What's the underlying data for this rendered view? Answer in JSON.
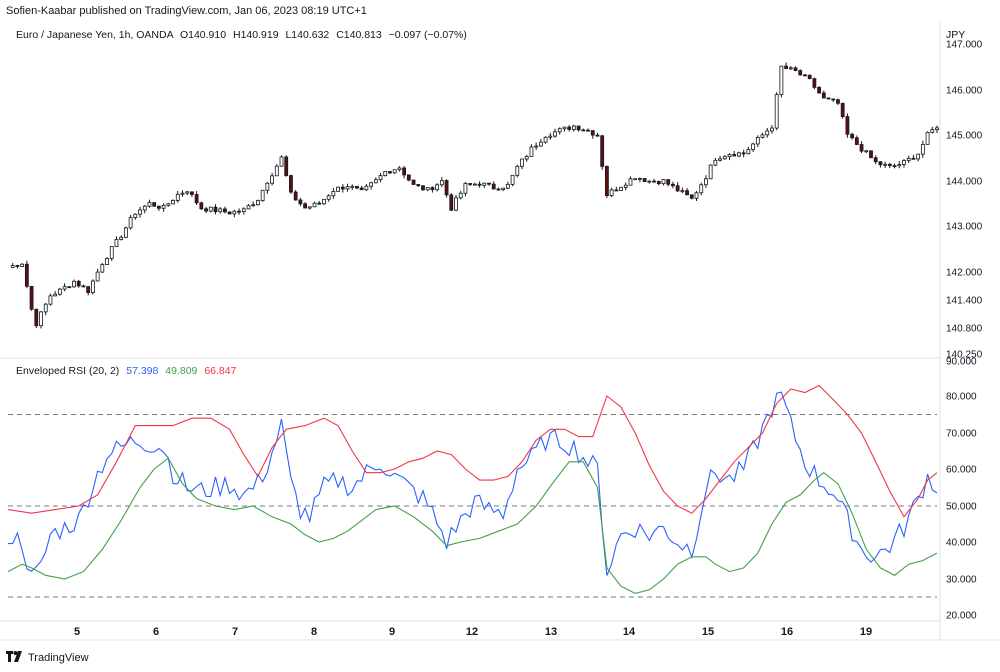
{
  "header": {
    "published": "Sofien-Kaabar published on TradingView.com, Jan 06, 2023 08:19 UTC+1"
  },
  "price_legend": {
    "symbol": "Euro / Japanese Yen, 1h, OANDA",
    "o": "O140.910",
    "h": "H140.919",
    "l": "L140.632",
    "c": "C140.813",
    "chg": "−0.097 (−0.07%)",
    "currency": "JPY"
  },
  "rsi_legend": {
    "name": "Enveloped RSI (20, 2)",
    "v1": "57.398",
    "v2": "49.809",
    "v3": "66.847"
  },
  "footer": {
    "brand": "TradingView",
    "logo_icon": "tradingview-logo-icon"
  },
  "colors": {
    "up": "#26a69a",
    "down": "#ef5350",
    "candle": "#131722",
    "rsi": "#2962ff",
    "lower": "#43a047",
    "upper": "#f23645",
    "grid_dash": "#787b86",
    "border": "#e0e3eb"
  },
  "chart_data": [
    {
      "type": "candlestick",
      "title": "Euro / Japanese Yen, 1h, OANDA",
      "ylabel": "JPY",
      "y_ticks": [
        "147.000",
        "146.000",
        "145.000",
        "144.000",
        "143.000",
        "142.000",
        "141.400",
        "140.800",
        "140.250"
      ],
      "y_tick_values": [
        147.0,
        146.0,
        145.0,
        144.0,
        143.0,
        142.0,
        141.4,
        140.8,
        140.25
      ],
      "ylim": [
        140.25,
        147.2
      ],
      "x_tick_labels": [
        "5",
        "6",
        "7",
        "8",
        "9",
        "12",
        "13",
        "14",
        "15",
        "16",
        "19"
      ],
      "close_path": [
        [
          0,
          142.1
        ],
        [
          3,
          142.2
        ],
        [
          5,
          141.2
        ],
        [
          6,
          140.9
        ],
        [
          9,
          141.5
        ],
        [
          11,
          141.6
        ],
        [
          14,
          141.8
        ],
        [
          17,
          141.6
        ],
        [
          20,
          142.2
        ],
        [
          24,
          142.8
        ],
        [
          27,
          143.3
        ],
        [
          30,
          143.5
        ],
        [
          33,
          143.4
        ],
        [
          36,
          143.7
        ],
        [
          38,
          143.8
        ],
        [
          41,
          143.4
        ],
        [
          44,
          143.35
        ],
        [
          47,
          143.3
        ],
        [
          50,
          143.35
        ],
        [
          53,
          143.6
        ],
        [
          55,
          144.0
        ],
        [
          58,
          144.5
        ],
        [
          60,
          143.7
        ],
        [
          63,
          143.4
        ],
        [
          66,
          143.5
        ],
        [
          69,
          143.8
        ],
        [
          72,
          143.9
        ],
        [
          75,
          143.75
        ],
        [
          78,
          144.0
        ],
        [
          80,
          144.2
        ],
        [
          83,
          144.3
        ],
        [
          86,
          143.9
        ],
        [
          89,
          143.8
        ],
        [
          92,
          144.0
        ],
        [
          94,
          143.4
        ],
        [
          97,
          143.9
        ],
        [
          100,
          143.95
        ],
        [
          103,
          143.85
        ],
        [
          106,
          143.9
        ],
        [
          108,
          144.3
        ],
        [
          111,
          144.7
        ],
        [
          114,
          145.0
        ],
        [
          117,
          145.1
        ],
        [
          120,
          145.2
        ],
        [
          123,
          145.1
        ],
        [
          125,
          145.0
        ],
        [
          127,
          143.7
        ],
        [
          130,
          143.9
        ],
        [
          133,
          144.1
        ],
        [
          136,
          144.0
        ],
        [
          139,
          144.0
        ],
        [
          142,
          143.8
        ],
        [
          145,
          143.6
        ],
        [
          148,
          144.1
        ],
        [
          150,
          144.5
        ],
        [
          153,
          144.6
        ],
        [
          156,
          144.6
        ],
        [
          159,
          144.9
        ],
        [
          162,
          145.2
        ],
        [
          164,
          146.5
        ],
        [
          167,
          146.4
        ],
        [
          170,
          146.2
        ],
        [
          173,
          145.8
        ],
        [
          176,
          145.7
        ],
        [
          178,
          145.0
        ],
        [
          181,
          144.7
        ],
        [
          184,
          144.4
        ],
        [
          187,
          144.3
        ],
        [
          190,
          144.4
        ],
        [
          193,
          144.6
        ],
        [
          195,
          145.0
        ],
        [
          197,
          145.2
        ]
      ]
    },
    {
      "type": "line",
      "title": "Enveloped RSI (20, 2)",
      "y_ticks": [
        "90.000",
        "80.000",
        "70.000",
        "60.000",
        "50.000",
        "40.000",
        "30.000",
        "20.000"
      ],
      "y_tick_values": [
        90,
        80,
        70,
        60,
        50,
        40,
        30,
        20
      ],
      "ylim": [
        17,
        92
      ],
      "levels": [
        75,
        50,
        25
      ],
      "x_tick_labels": [
        "5",
        "6",
        "7",
        "8",
        "9",
        "12",
        "13",
        "14",
        "15",
        "16",
        "19"
      ],
      "series": [
        {
          "name": "",
          "color": "#2962ff",
          "points": [
            [
              0,
              42
            ],
            [
              3,
              40
            ],
            [
              5,
              30
            ],
            [
              7,
              33
            ],
            [
              9,
              42
            ],
            [
              12,
              44
            ],
            [
              15,
              46
            ],
            [
              18,
              56
            ],
            [
              21,
              64
            ],
            [
              24,
              66
            ],
            [
              27,
              68
            ],
            [
              30,
              67
            ],
            [
              33,
              66
            ],
            [
              35,
              59
            ],
            [
              38,
              55
            ],
            [
              41,
              54
            ],
            [
              44,
              55
            ],
            [
              47,
              56
            ],
            [
              50,
              53
            ],
            [
              53,
              56
            ],
            [
              55,
              61
            ],
            [
              58,
              72
            ],
            [
              60,
              56
            ],
            [
              62,
              49
            ],
            [
              64,
              47
            ],
            [
              67,
              55
            ],
            [
              70,
              57
            ],
            [
              73,
              55
            ],
            [
              76,
              59
            ],
            [
              79,
              62
            ],
            [
              82,
              58
            ],
            [
              85,
              55
            ],
            [
              88,
              52
            ],
            [
              90,
              48
            ],
            [
              93,
              40
            ],
            [
              96,
              46
            ],
            [
              99,
              51
            ],
            [
              102,
              49
            ],
            [
              105,
              48
            ],
            [
              108,
              60
            ],
            [
              111,
              63
            ],
            [
              114,
              68
            ],
            [
              117,
              68
            ],
            [
              120,
              66
            ],
            [
              123,
              62
            ],
            [
              125,
              60
            ],
            [
              127,
              32
            ],
            [
              130,
              42
            ],
            [
              133,
              44
            ],
            [
              136,
              42
            ],
            [
              139,
              44
            ],
            [
              142,
              40
            ],
            [
              145,
              38
            ],
            [
              148,
              55
            ],
            [
              150,
              59
            ],
            [
              153,
              57
            ],
            [
              156,
              60
            ],
            [
              159,
              68
            ],
            [
              162,
              77
            ],
            [
              164,
              80
            ],
            [
              166,
              72
            ],
            [
              169,
              62
            ],
            [
              172,
              57
            ],
            [
              175,
              54
            ],
            [
              178,
              46
            ],
            [
              181,
              38
            ],
            [
              184,
              36
            ],
            [
              187,
              39
            ],
            [
              190,
              44
            ],
            [
              193,
              52
            ],
            [
              195,
              58
            ],
            [
              197,
              55
            ]
          ]
        },
        {
          "name": "",
          "color": "#43a047",
          "points": [
            [
              0,
              32
            ],
            [
              3,
              34
            ],
            [
              5,
              33
            ],
            [
              8,
              31
            ],
            [
              12,
              30
            ],
            [
              16,
              32
            ],
            [
              20,
              38
            ],
            [
              24,
              46
            ],
            [
              28,
              55
            ],
            [
              31,
              60
            ],
            [
              34,
              63
            ],
            [
              37,
              56
            ],
            [
              40,
              52
            ],
            [
              44,
              50
            ],
            [
              48,
              49
            ],
            [
              52,
              50
            ],
            [
              56,
              47
            ],
            [
              60,
              45
            ],
            [
              63,
              42
            ],
            [
              66,
              40
            ],
            [
              69,
              41
            ],
            [
              72,
              43
            ],
            [
              75,
              46
            ],
            [
              78,
              49
            ],
            [
              82,
              50
            ],
            [
              86,
              47
            ],
            [
              90,
              43
            ],
            [
              93,
              39
            ],
            [
              96,
              40
            ],
            [
              100,
              41
            ],
            [
              104,
              43
            ],
            [
              108,
              45
            ],
            [
              112,
              50
            ],
            [
              116,
              57
            ],
            [
              119,
              62
            ],
            [
              122,
              62
            ],
            [
              125,
              55
            ],
            [
              127,
              33
            ],
            [
              130,
              28
            ],
            [
              133,
              26
            ],
            [
              136,
              27
            ],
            [
              139,
              30
            ],
            [
              142,
              34
            ],
            [
              145,
              36
            ],
            [
              148,
              36
            ],
            [
              150,
              34
            ],
            [
              153,
              32
            ],
            [
              156,
              33
            ],
            [
              159,
              37
            ],
            [
              162,
              45
            ],
            [
              165,
              51
            ],
            [
              168,
              53
            ],
            [
              171,
              57
            ],
            [
              173,
              59
            ],
            [
              176,
              56
            ],
            [
              179,
              48
            ],
            [
              182,
              38
            ],
            [
              185,
              33
            ],
            [
              188,
              31
            ],
            [
              191,
              34
            ],
            [
              194,
              35
            ],
            [
              197,
              37
            ]
          ]
        },
        {
          "name": "",
          "color": "#f23645",
          "points": [
            [
              0,
              49
            ],
            [
              5,
              48
            ],
            [
              10,
              49
            ],
            [
              15,
              50
            ],
            [
              19,
              53
            ],
            [
              23,
              62
            ],
            [
              27,
              72
            ],
            [
              31,
              72
            ],
            [
              35,
              72
            ],
            [
              39,
              74
            ],
            [
              43,
              74
            ],
            [
              47,
              71
            ],
            [
              50,
              64
            ],
            [
              53,
              58
            ],
            [
              56,
              66
            ],
            [
              59,
              71
            ],
            [
              63,
              72
            ],
            [
              67,
              74
            ],
            [
              70,
              72
            ],
            [
              73,
              65
            ],
            [
              76,
              59
            ],
            [
              79,
              59
            ],
            [
              82,
              60
            ],
            [
              85,
              62
            ],
            [
              88,
              63
            ],
            [
              91,
              65
            ],
            [
              94,
              64
            ],
            [
              97,
              60
            ],
            [
              100,
              57
            ],
            [
              103,
              57
            ],
            [
              106,
              58
            ],
            [
              109,
              62
            ],
            [
              112,
              68
            ],
            [
              115,
              71
            ],
            [
              118,
              71
            ],
            [
              121,
              69
            ],
            [
              124,
              69
            ],
            [
              127,
              80
            ],
            [
              130,
              77
            ],
            [
              133,
              70
            ],
            [
              136,
              61
            ],
            [
              139,
              54
            ],
            [
              142,
              50
            ],
            [
              145,
              48
            ],
            [
              148,
              52
            ],
            [
              151,
              57
            ],
            [
              154,
              62
            ],
            [
              157,
              66
            ],
            [
              160,
              70
            ],
            [
              163,
              78
            ],
            [
              166,
              82
            ],
            [
              169,
              81
            ],
            [
              172,
              83
            ],
            [
              175,
              79
            ],
            [
              178,
              75
            ],
            [
              181,
              70
            ],
            [
              184,
              62
            ],
            [
              187,
              54
            ],
            [
              190,
              47
            ],
            [
              193,
              52
            ],
            [
              195,
              57
            ],
            [
              197,
              59
            ]
          ]
        }
      ]
    }
  ]
}
